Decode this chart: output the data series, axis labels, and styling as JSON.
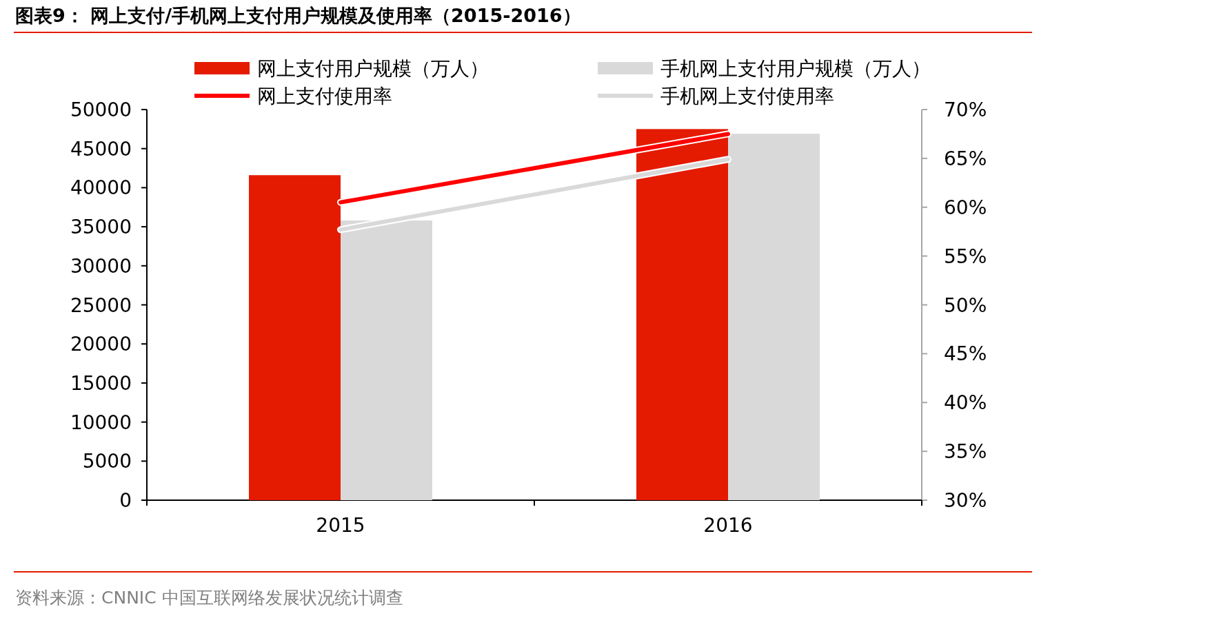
{
  "chart_data": {
    "type": "bar",
    "title": "图表9：  网上支付/手机网上支付用户规模及使用率（2015-2016）",
    "categories": [
      "2015",
      "2016"
    ],
    "series": [
      {
        "name": "网上支付用户规模（万人）",
        "color": "#e41b00",
        "values": [
          41600,
          47500
        ]
      },
      {
        "name": "手机网上支付用户规模（万人）",
        "color": "#d9d9d9",
        "values": [
          35800,
          46900
        ]
      },
      {
        "name": "网上支付使用率",
        "type": "line",
        "axis": "y2",
        "color": "#ff0000",
        "values": [
          60.5,
          67.5
        ]
      },
      {
        "name": "手机网上支付使用率",
        "type": "line",
        "axis": "y2",
        "color": "#d9d9d9",
        "values": [
          57.7,
          64.9
        ]
      }
    ],
    "ylim": [
      0,
      50000
    ],
    "yticks": [
      0,
      5000,
      10000,
      15000,
      20000,
      25000,
      30000,
      35000,
      40000,
      45000,
      50000
    ],
    "y2lim": [
      30,
      70
    ],
    "y2ticks": [
      {
        "value": 30,
        "label": "30%"
      },
      {
        "value": 35,
        "label": "35%"
      },
      {
        "value": 40,
        "label": "40%"
      },
      {
        "value": 45,
        "label": "45%"
      },
      {
        "value": 50,
        "label": "50%"
      },
      {
        "value": 55,
        "label": "55%"
      },
      {
        "value": 60,
        "label": "60%"
      },
      {
        "value": 65,
        "label": "65%"
      },
      {
        "value": 70,
        "label": "70%"
      }
    ],
    "legend": "top",
    "line_style": "solid",
    "marker": "none",
    "annotations": [
      "资料来源：CNNIC 中国互联网络发展状况统计调查"
    ]
  }
}
